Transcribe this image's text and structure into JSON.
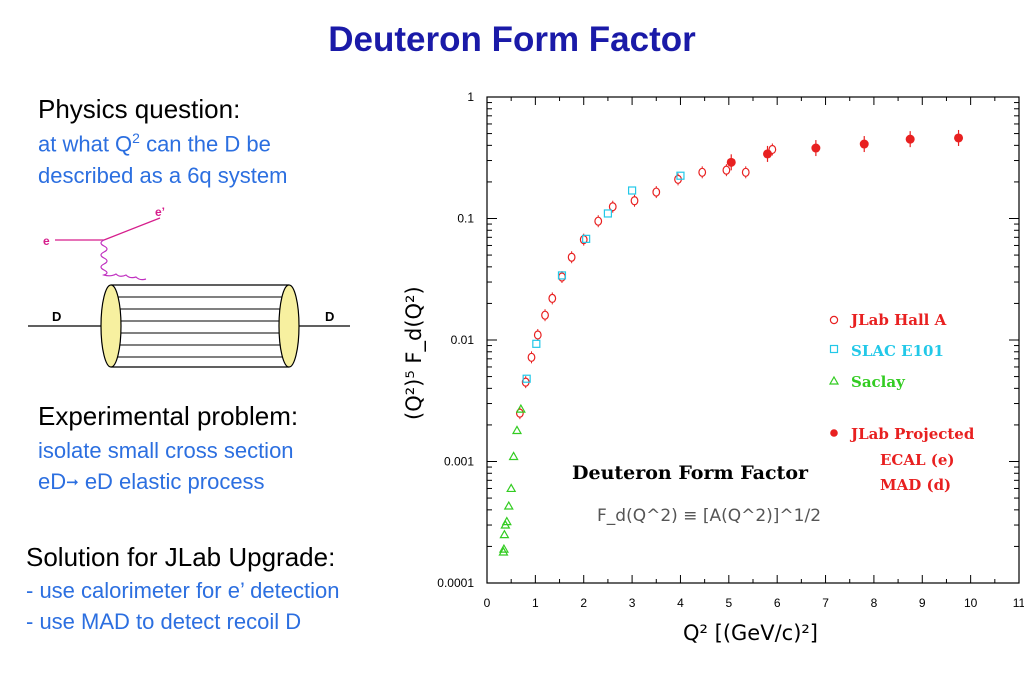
{
  "title": "Deuteron Form Factor",
  "left": {
    "q1_heading": "Physics question:",
    "q1_line1": "at what Q",
    "q1_line1_sup": "2",
    "q1_line1_rest": " can the D be",
    "q1_line2": "described as a 6q system",
    "q2_heading": "Experimental problem:",
    "q2_line1": "isolate small cross section",
    "q2_line2_a": "eD",
    "q2_line2_b": " eD elastic process",
    "q3_heading": "Solution for JLab Upgrade:",
    "q3_line1": "- use calorimeter for e’ detection",
    "q3_line2": "- use MAD to detect recoil D"
  },
  "diagram": {
    "e_in": "e",
    "e_out": "e’",
    "d_left": "D",
    "d_right": "D"
  },
  "colors": {
    "title": "#1a1aa8",
    "blue_text": "#2c6fe0",
    "jlab": "#e82020",
    "slac": "#22c8e8",
    "saclay": "#33cc22",
    "electron": "#d61e8c",
    "cylinder_end": "#f7f0a0"
  },
  "chart_data": {
    "type": "scatter",
    "title": "Deuteron Form Factor",
    "formula": "F_d(Q^2) ≡ [A(Q^2)]^1/2",
    "xlabel": "Q²   [(GeV/c)²]",
    "ylabel": "(Q²)⁵  F_d(Q²)",
    "xlim": [
      0,
      11
    ],
    "ylim": [
      0.0001,
      1
    ],
    "y_scale": "log",
    "x_ticks": [
      "0",
      "1",
      "2",
      "3",
      "4",
      "5",
      "6",
      "7",
      "8",
      "9",
      "10",
      "11"
    ],
    "y_ticks": [
      "0.0001",
      "0.001",
      "0.01",
      "0.1",
      "1"
    ],
    "legend_position": "right",
    "series": [
      {
        "name": "JLab Hall A",
        "marker": "open-circle",
        "x": [
          0.68,
          0.8,
          0.92,
          1.05,
          1.2,
          1.35,
          1.55,
          1.75,
          2.0,
          2.3,
          2.6,
          3.05,
          3.5,
          3.95,
          4.45,
          4.95,
          5.35,
          5.9
        ],
        "y": [
          0.0025,
          0.0045,
          0.0072,
          0.011,
          0.016,
          0.022,
          0.033,
          0.048,
          0.067,
          0.095,
          0.125,
          0.14,
          0.165,
          0.21,
          0.24,
          0.25,
          0.24,
          0.37
        ]
      },
      {
        "name": "SLAC E101",
        "marker": "open-square",
        "x": [
          0.82,
          1.02,
          1.55,
          2.05,
          2.5,
          3.0,
          4.0
        ],
        "y": [
          0.0048,
          0.0093,
          0.034,
          0.068,
          0.11,
          0.17,
          0.225
        ]
      },
      {
        "name": "Saclay",
        "marker": "open-triangle",
        "x": [
          0.34,
          0.35,
          0.36,
          0.38,
          0.41,
          0.45,
          0.5,
          0.55,
          0.62,
          0.7
        ],
        "y": [
          0.00018,
          0.00019,
          0.00025,
          0.0003,
          0.00032,
          0.00043,
          0.0006,
          0.0011,
          0.0018,
          0.0027
        ]
      },
      {
        "name": "JLab Projected",
        "marker": "filled-circle",
        "sub_labels": [
          "ECAL (e)",
          "MAD (d)"
        ],
        "x": [
          5.05,
          5.8,
          6.8,
          7.8,
          8.75,
          9.75
        ],
        "y": [
          0.29,
          0.34,
          0.38,
          0.41,
          0.45,
          0.46
        ]
      }
    ]
  }
}
